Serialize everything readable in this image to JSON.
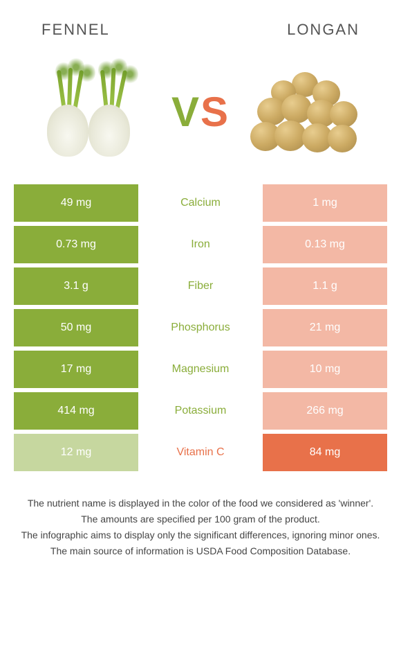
{
  "foods": {
    "left": {
      "name": "FENNEL",
      "color": "#8aad3a"
    },
    "right": {
      "name": "LONGAN",
      "color": "#e8714a"
    }
  },
  "vs": {
    "v": "V",
    "s": "S"
  },
  "cell_bg": {
    "left_loser": "#c6d79f",
    "right_loser": "#f3b8a5"
  },
  "nutrients": [
    {
      "label": "Calcium",
      "left": "49 mg",
      "right": "1 mg",
      "winner": "left"
    },
    {
      "label": "Iron",
      "left": "0.73 mg",
      "right": "0.13 mg",
      "winner": "left"
    },
    {
      "label": "Fiber",
      "left": "3.1 g",
      "right": "1.1 g",
      "winner": "left"
    },
    {
      "label": "Phosphorus",
      "left": "50 mg",
      "right": "21 mg",
      "winner": "left"
    },
    {
      "label": "Magnesium",
      "left": "17 mg",
      "right": "10 mg",
      "winner": "left"
    },
    {
      "label": "Potassium",
      "left": "414 mg",
      "right": "266 mg",
      "winner": "left"
    },
    {
      "label": "Vitamin C",
      "left": "12 mg",
      "right": "84 mg",
      "winner": "right"
    }
  ],
  "footer": [
    "The nutrient name is displayed in the color of the food we considered as 'winner'.",
    "The amounts are specified per 100 gram of the product.",
    "The infographic aims to display only the significant differences, ignoring minor ones.",
    "The main source of information is USDA Food Composition Database."
  ]
}
